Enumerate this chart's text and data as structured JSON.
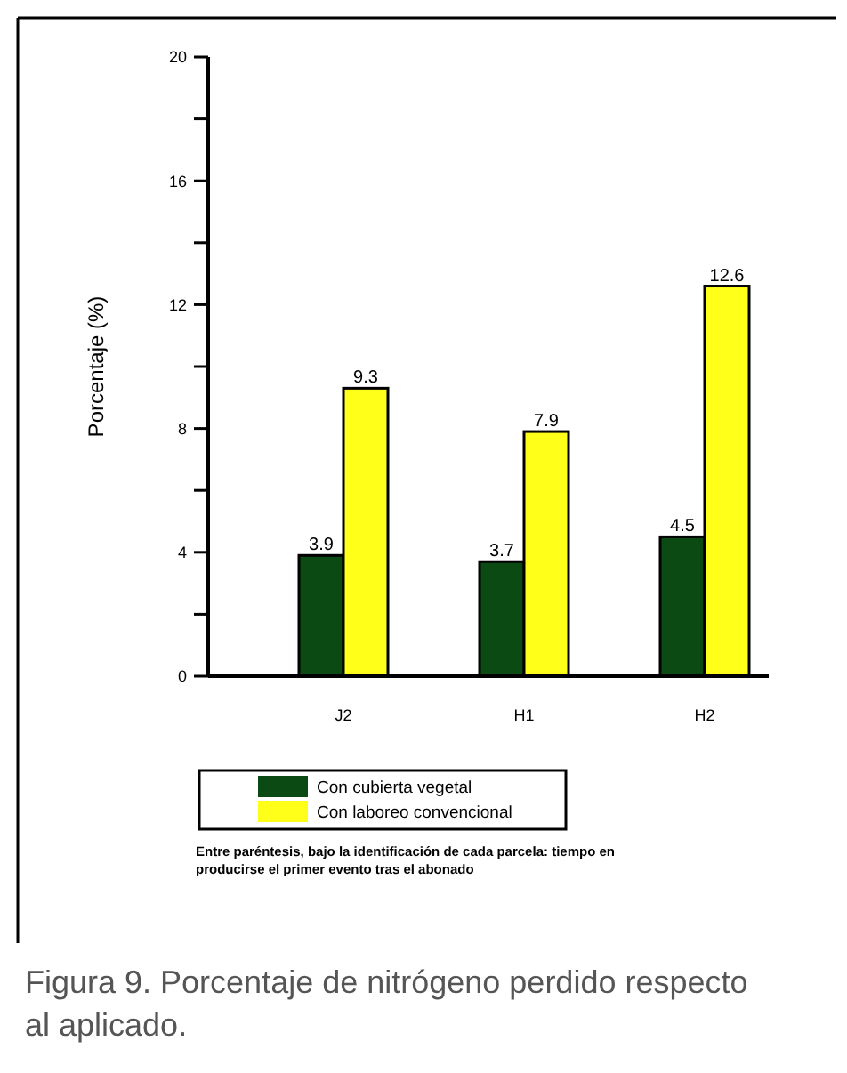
{
  "chart_data": {
    "type": "bar",
    "title": "Figura 9. Porcentaje de nitrógeno perdido respecto al aplicado.",
    "ylabel": "Porcentaje (%)",
    "categories": [
      "J2",
      "H1",
      "H2"
    ],
    "series": [
      {
        "name": "Con cubierta vegetal",
        "color": "#0b4a12",
        "values": [
          3.9,
          3.7,
          4.5
        ]
      },
      {
        "name": "Con laboreo convencional",
        "color": "#ffff1a",
        "values": [
          9.3,
          7.9,
          12.6
        ]
      }
    ],
    "ylim": [
      0,
      20
    ],
    "yticks": [
      0,
      {
        "value": 2,
        "label": null
      },
      4,
      {
        "value": 6,
        "label": null
      },
      8,
      {
        "value": 10,
        "label": null
      },
      12,
      {
        "value": 14,
        "label": null
      },
      16,
      {
        "value": 18,
        "label": null
      },
      20
    ],
    "data_labels": true,
    "legend": "bottom",
    "grid": false,
    "annotations": [
      "Entre paréntesis, bajo la identificación de cada parcela: tiempo en producirse el primer evento tras el abonado"
    ]
  }
}
